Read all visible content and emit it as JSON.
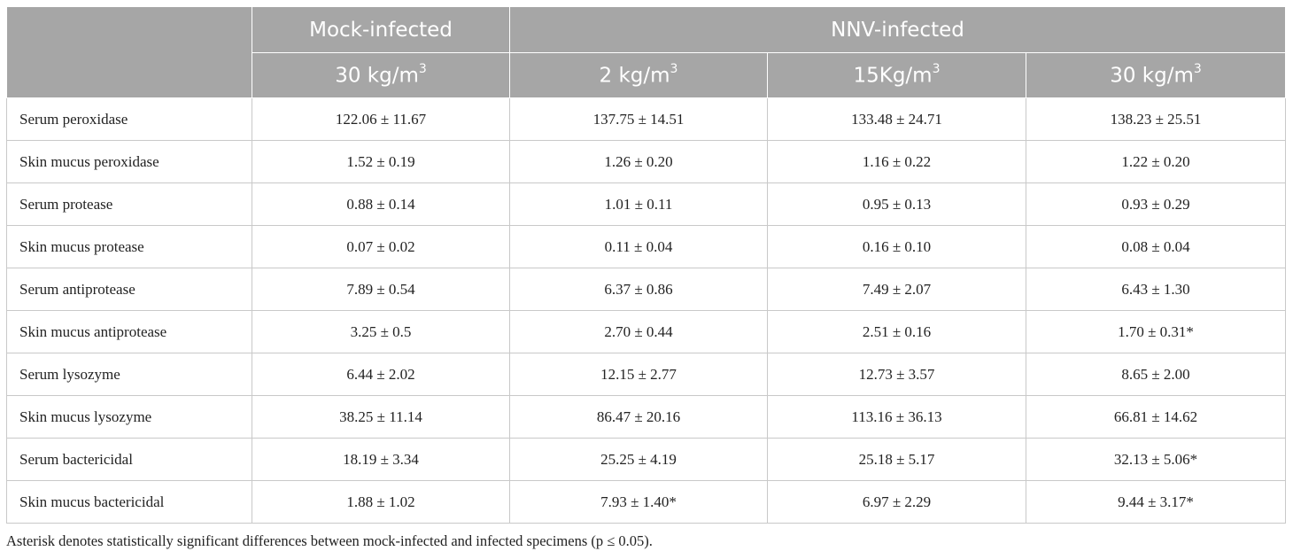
{
  "table": {
    "header": {
      "group1": "Mock-infected",
      "group2": "NNV-infected",
      "subheaders": [
        {
          "base": "30 kg/m",
          "sup": "3"
        },
        {
          "base": "2 kg/m",
          "sup": "3"
        },
        {
          "base": "15Kg/m",
          "sup": "3"
        },
        {
          "base": "30 kg/m",
          "sup": "3"
        }
      ]
    },
    "rows": [
      {
        "label": "Serum peroxidase",
        "values": [
          "122.06 ± 11.67",
          "137.75 ± 14.51",
          "133.48 ± 24.71",
          "138.23 ± 25.51"
        ]
      },
      {
        "label": "Skin mucus peroxidase",
        "values": [
          "1.52 ± 0.19",
          "1.26 ± 0.20",
          "1.16 ± 0.22",
          "1.22 ± 0.20"
        ]
      },
      {
        "label": "Serum protease",
        "values": [
          "0.88 ± 0.14",
          "1.01 ± 0.11",
          "0.95 ± 0.13",
          "0.93 ± 0.29"
        ]
      },
      {
        "label": "Skin mucus protease",
        "values": [
          "0.07 ± 0.02",
          "0.11 ± 0.04",
          "0.16 ± 0.10",
          "0.08 ± 0.04"
        ]
      },
      {
        "label": "Serum antiprotease",
        "values": [
          "7.89 ± 0.54",
          "6.37 ± 0.86",
          "7.49 ± 2.07",
          "6.43 ± 1.30"
        ]
      },
      {
        "label": "Skin mucus antiprotease",
        "values": [
          "3.25 ± 0.5",
          "2.70 ± 0.44",
          "2.51 ± 0.16",
          "1.70 ± 0.31*"
        ]
      },
      {
        "label": "Serum lysozyme",
        "values": [
          "6.44 ± 2.02",
          "12.15 ± 2.77",
          "12.73 ± 3.57",
          "8.65 ± 2.00"
        ]
      },
      {
        "label": "Skin mucus lysozyme",
        "values": [
          "38.25 ± 11.14",
          "86.47 ± 20.16",
          "113.16 ± 36.13",
          "66.81 ± 14.62"
        ]
      },
      {
        "label": "Serum bactericidal",
        "values": [
          "18.19 ± 3.34",
          "25.25 ± 4.19",
          "25.18 ± 5.17",
          "32.13 ± 5.06*"
        ]
      },
      {
        "label": "Skin mucus bactericidal",
        "values": [
          "1.88 ± 1.02",
          "7.93 ± 1.40*",
          "6.97 ± 2.29",
          "9.44 ± 3.17*"
        ]
      }
    ],
    "footnote": "Asterisk denotes statistically significant differences between mock-infected and infected specimens (p ≤ 0.05)."
  },
  "colors": {
    "header_bg": "#a6a6a6",
    "header_text": "#ffffff",
    "border": "#c9c9c9",
    "body_text": "#222222"
  }
}
